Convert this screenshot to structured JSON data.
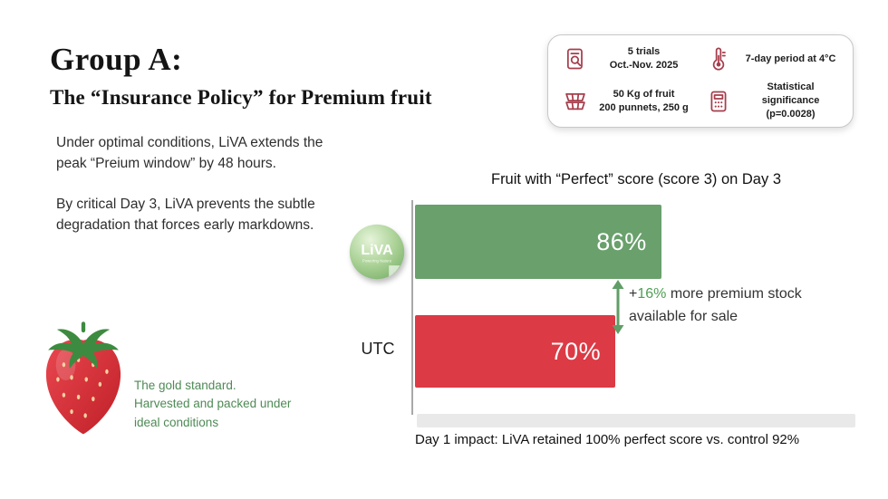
{
  "header": {
    "title": "Group A:",
    "subtitle": "The “Insurance Policy” for Premium fruit"
  },
  "stats_card": {
    "items": [
      {
        "icon": "clipboard-trials-icon",
        "line1": "5 trials",
        "line2": "Oct.-Nov. 2025"
      },
      {
        "icon": "thermometer-icon",
        "line1": "7-day period at 4°C",
        "line2": ""
      },
      {
        "icon": "punnets-icon",
        "line1": "50 Kg of fruit",
        "line2": "200 punnets, 250 g"
      },
      {
        "icon": "calculator-icon",
        "line1": "Statistical significance",
        "line2": "(p=0.0028)"
      }
    ]
  },
  "left_panel": {
    "paragraph1": "Under optimal conditions, LiVA extends the peak “Preium window” by 48 hours.",
    "paragraph2": "By critical Day 3, LiVA prevents the subtle degradation that forces early markdowns.",
    "strawberry_caption": "The gold standard.\nHarvested and packed under\nideal conditions"
  },
  "logo": {
    "name": "LiVA",
    "tagline": "Powering Nature"
  },
  "chart_data": {
    "type": "bar",
    "orientation": "horizontal",
    "title": "Fruit with “Perfect” score (score 3) on Day 3",
    "categories": [
      "LiVA",
      "UTC"
    ],
    "values": [
      86,
      70
    ],
    "value_labels": [
      "86%",
      "70%"
    ],
    "colors": [
      "#69a06c",
      "#dc3a45"
    ],
    "xlim": [
      0,
      100
    ],
    "legend": "none",
    "grid": false,
    "annotation": {
      "plus": "+",
      "delta": "16%",
      "rest": " more premium stock available for sale"
    },
    "footnote": "Day 1 impact: LiVA retained 100% perfect score vs. control 92%"
  }
}
